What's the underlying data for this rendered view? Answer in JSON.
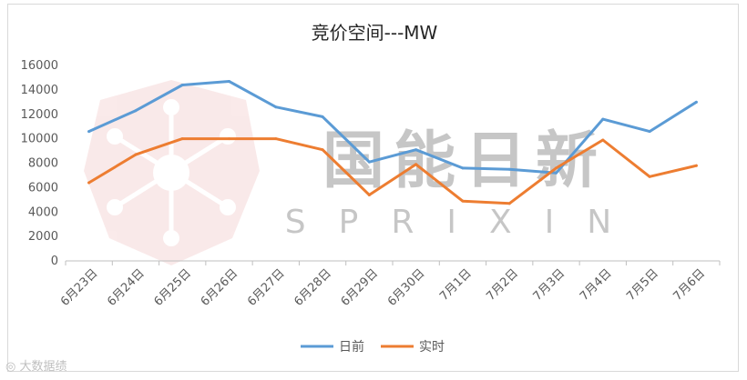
{
  "chart_data": {
    "type": "line",
    "title": "竞价空间---MW",
    "categories": [
      "6月23日",
      "6月24日",
      "6月25日",
      "6月26日",
      "6月27日",
      "6月28日",
      "6月29日",
      "6月30日",
      "7月1日",
      "7月2日",
      "7月3日",
      "7月4日",
      "7月5日",
      "7月6日"
    ],
    "series": [
      {
        "name": "日前",
        "values": [
          10600,
          12300,
          14400,
          14700,
          12600,
          11800,
          8100,
          9100,
          7600,
          7500,
          7200,
          11600,
          10600,
          13000
        ]
      },
      {
        "name": "实时",
        "values": [
          6400,
          8700,
          10000,
          10000,
          10000,
          9100,
          5400,
          7900,
          4900,
          4700,
          7600,
          9900,
          6900,
          7800
        ]
      }
    ],
    "ylim": [
      0,
      16000
    ],
    "yticks": [
      0,
      2000,
      4000,
      6000,
      8000,
      10000,
      12000,
      14000,
      16000
    ],
    "grid": false,
    "legend": "bottom"
  },
  "colors": {
    "series_0": "#5b9bd5",
    "series_1": "#ed7d31",
    "axis": "#bfbfbf",
    "text": "#595959"
  },
  "watermark": {
    "main": "国能日新",
    "sub": "SPRIXIN"
  },
  "footer": {
    "source": "大数据绩"
  }
}
